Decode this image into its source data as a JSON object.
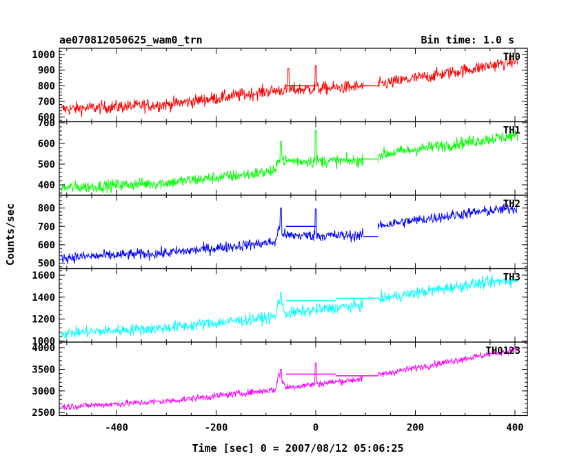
{
  "chart_data": {
    "type": "line",
    "title_left": "ae070812050625_wam0_trn",
    "title_right": "Bin time: 1.0 s",
    "xlabel": "Time [sec] 0 = 2007/08/12 05:06:25",
    "ylabel": "Counts/sec",
    "xlim": [
      -515,
      425
    ],
    "x_ticks": [
      -400,
      -200,
      0,
      200,
      400
    ],
    "panels": [
      {
        "name": "TH0",
        "color": "#ff0000",
        "ylim": [
          570,
          1040
        ],
        "y_ticks": [
          600,
          700,
          800,
          900,
          1000
        ],
        "trend": [
          [
            -510,
            650
          ],
          [
            -300,
            680
          ],
          [
            -80,
            770
          ],
          [
            95,
            795
          ],
          [
            130,
            810
          ],
          [
            300,
            900
          ],
          [
            405,
            960
          ]
        ],
        "noise": 35,
        "gap_value": 800,
        "level_segments": [
          [
            -60,
            0,
            800
          ],
          [
            95,
            125,
            800
          ]
        ],
        "spikes": [
          [
            -55,
            910
          ],
          [
            0,
            930
          ]
        ]
      },
      {
        "name": "TH1",
        "color": "#00ff00",
        "ylim": [
          350,
          705
        ],
        "y_ticks": [
          400,
          500,
          600,
          700
        ],
        "trend": [
          [
            -510,
            385
          ],
          [
            -300,
            410
          ],
          [
            -80,
            465
          ],
          [
            -75,
            535
          ],
          [
            -60,
            515
          ],
          [
            95,
            515
          ],
          [
            125,
            545
          ],
          [
            300,
            605
          ],
          [
            405,
            640
          ]
        ],
        "noise": 25,
        "gap_value": 525,
        "level_segments": [
          [
            95,
            125,
            525
          ]
        ],
        "spikes": [
          [
            -70,
            610
          ],
          [
            0,
            665
          ]
        ]
      },
      {
        "name": "TH2",
        "color": "#0000ff",
        "ylim": [
          470,
          870
        ],
        "y_ticks": [
          500,
          600,
          700,
          800
        ],
        "trend": [
          [
            -510,
            530
          ],
          [
            -300,
            555
          ],
          [
            -80,
            615
          ],
          [
            -75,
            690
          ],
          [
            -60,
            650
          ],
          [
            95,
            650
          ],
          [
            125,
            705
          ],
          [
            300,
            770
          ],
          [
            405,
            800
          ]
        ],
        "noise": 25,
        "gap_value": 645,
        "level_segments": [
          [
            -60,
            0,
            700
          ],
          [
            95,
            125,
            645
          ]
        ],
        "spikes": [
          [
            -70,
            800
          ],
          [
            0,
            795
          ]
        ]
      },
      {
        "name": "TH3",
        "color": "#00ffff",
        "ylim": [
          990,
          1660
        ],
        "y_ticks": [
          1000,
          1200,
          1400,
          1600
        ],
        "trend": [
          [
            -510,
            1070
          ],
          [
            -300,
            1120
          ],
          [
            -80,
            1220
          ],
          [
            -75,
            1380
          ],
          [
            -60,
            1250
          ],
          [
            95,
            1330
          ],
          [
            125,
            1380
          ],
          [
            300,
            1510
          ],
          [
            405,
            1560
          ]
        ],
        "noise": 45,
        "gap_value": 1390,
        "level_segments": [
          [
            -60,
            40,
            1370
          ],
          [
            40,
            125,
            1390
          ]
        ],
        "spikes": [
          [
            -70,
            1440
          ]
        ]
      },
      {
        "name": "TH0123",
        "color": "#ff00ff",
        "ylim": [
          2430,
          4130
        ],
        "y_ticks": [
          2500,
          3000,
          3500,
          4000
        ],
        "trend": [
          [
            -510,
            2630
          ],
          [
            -300,
            2760
          ],
          [
            -80,
            3030
          ],
          [
            -75,
            3400
          ],
          [
            -60,
            3080
          ],
          [
            95,
            3280
          ],
          [
            125,
            3370
          ],
          [
            300,
            3750
          ],
          [
            405,
            3960
          ]
        ],
        "noise": 65,
        "gap_value": 3350,
        "level_segments": [
          [
            -60,
            40,
            3390
          ],
          [
            40,
            125,
            3350
          ]
        ],
        "spikes": [
          [
            0,
            3650
          ],
          [
            -70,
            3500
          ]
        ]
      }
    ]
  }
}
